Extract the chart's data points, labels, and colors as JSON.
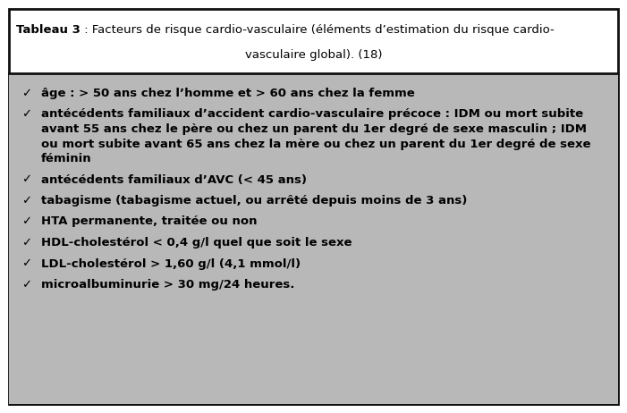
{
  "title_bold": "Tableau 3",
  "title_line1_normal": " : Facteurs de risque cardio-vasculaire (éléments d’estimation du risque cardio-",
  "title_line2": "vasculaire global). (18)",
  "header_bg": "#ffffff",
  "body_bg": "#b8b8b8",
  "border_color": "#111111",
  "items": [
    "âge : > 50 ans chez l’homme et > 60 ans chez la femme",
    "antécédents familiaux d’accident cardio-vasculaire précoce : IDM ou mort subite\navant 55 ans chez le père ou chez un parent du 1er degré de sexe masculin ; IDM\nou mort subite avant 65 ans chez la mère ou chez un parent du 1er degré de sexe\nféminin",
    "antécédents familiaux d’AVC (< 45 ans)",
    "tabagisme (tabagisme actuel, ou arrêté depuis moins de 3 ans)",
    "HTA permanente, traitée ou non",
    "HDL-cholestérol < 0,4 g/l quel que soit le sexe",
    "LDL-cholestérol > 1,60 g/l (4,1 mmol/l)",
    "microalbuminurie > 30 mg/24 heures."
  ],
  "checkmark": "✓",
  "font_size": 9.5,
  "text_color": "#000000",
  "fig_width": 7.01,
  "fig_height": 4.62,
  "dpi": 100
}
